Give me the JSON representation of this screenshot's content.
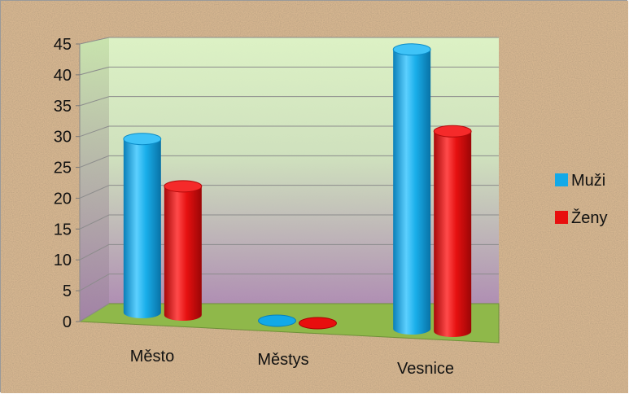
{
  "chart_data": {
    "type": "bar",
    "style": "3d-cylinder",
    "categories": [
      "Město",
      "Městys",
      "Vesnice"
    ],
    "series": [
      {
        "name": "Muži",
        "color": "#12A9E8",
        "values": [
          29,
          0,
          44
        ]
      },
      {
        "name": "Ženy",
        "color": "#E80E0E",
        "values": [
          21.5,
          0,
          31.5
        ]
      }
    ],
    "ylim": [
      0,
      45
    ],
    "yticks": [
      "0",
      "5",
      "10",
      "15",
      "20",
      "25",
      "30",
      "35",
      "40",
      "45"
    ],
    "grid": true,
    "legend_position": "right",
    "colors": {
      "background": "#D8B892",
      "wall_top": "#DDF5C8",
      "wall_bottom": "#B08CB6",
      "floor": "#8FB84A"
    }
  }
}
